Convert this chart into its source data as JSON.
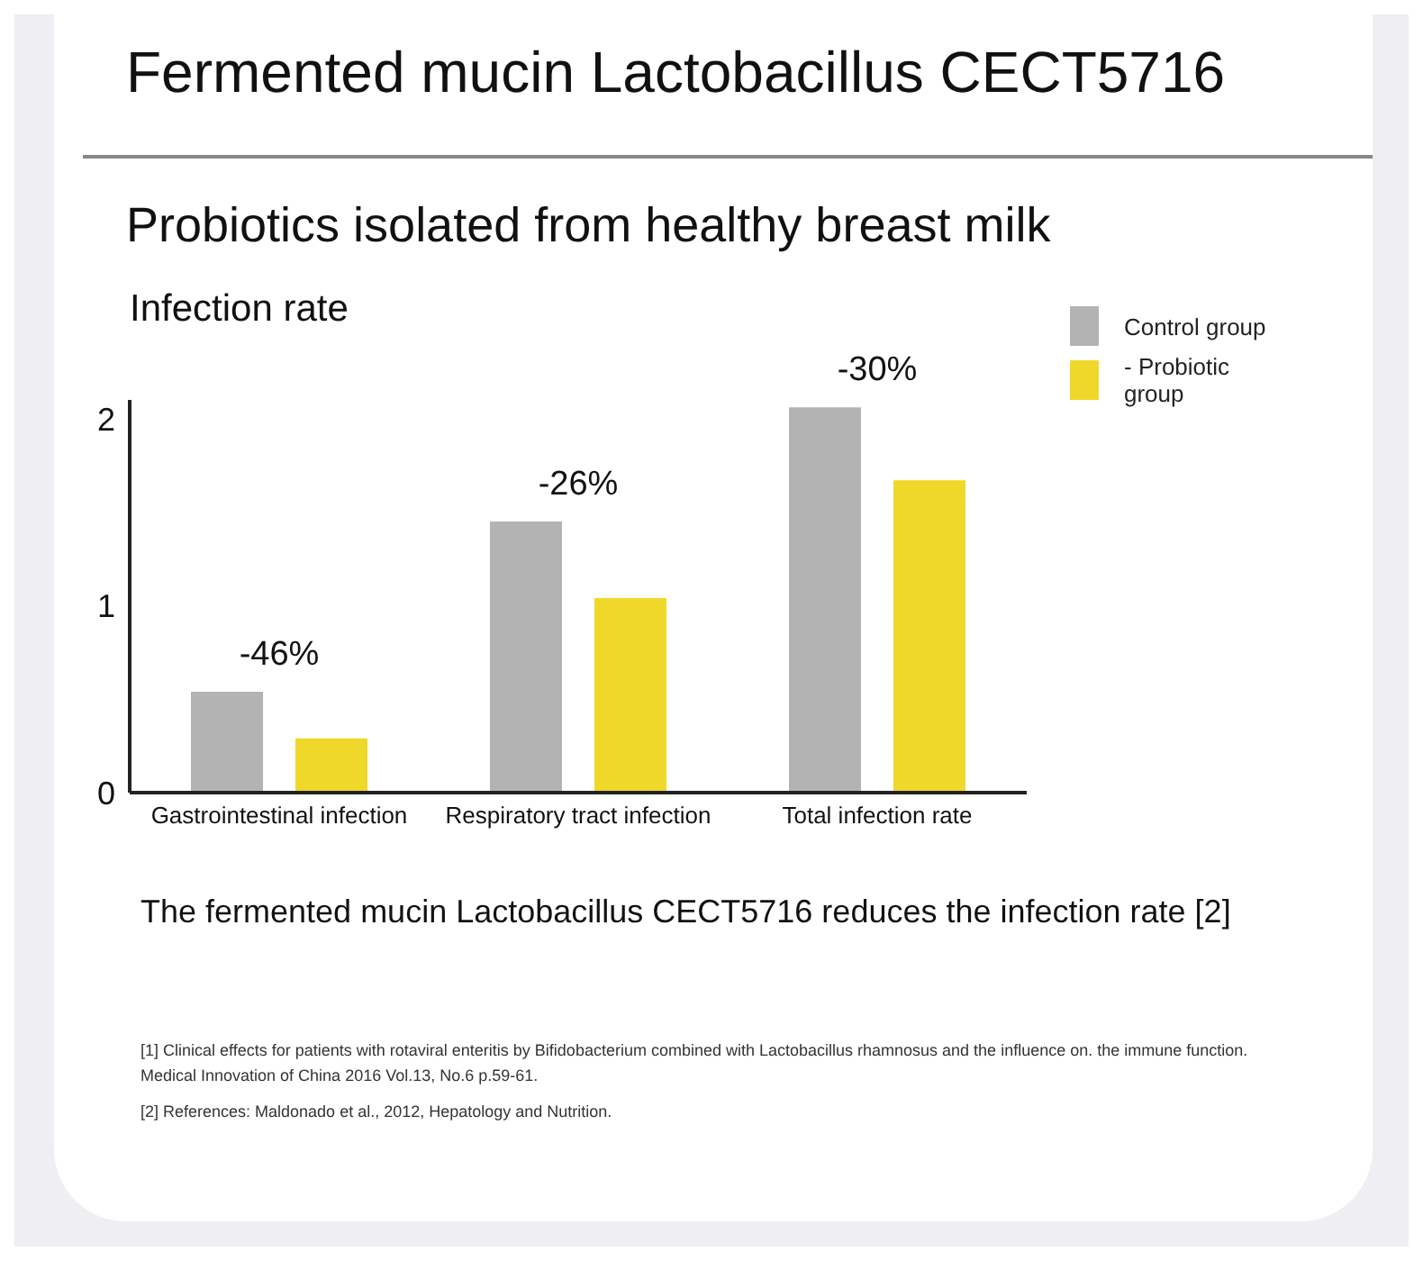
{
  "chart_data": {
    "type": "bar",
    "title": "Fermented mucin Lactobacillus CECT5716",
    "subtitle": "Probiotics isolated from healthy breast milk",
    "ylabel": "Infection rate",
    "categories": [
      "Gastrointestinal infection",
      "Respiratory tract infection",
      "Total infection rate"
    ],
    "series": [
      {
        "name": "Control group",
        "color": "#b3b3b3",
        "values": [
          0.54,
          1.45,
          2.06
        ]
      },
      {
        "name": "- Probiotic group",
        "color": "#f0d82a",
        "values": [
          0.29,
          1.04,
          1.67
        ]
      }
    ],
    "ylim": [
      0,
      2.1
    ],
    "yticks": [
      0,
      1,
      2
    ],
    "grid": false,
    "legend": "top right",
    "annotations": [
      "-46%",
      "-26%",
      "-30%",
      "The fermented mucin Lactobacillus CECT5716 reduces the infection rate [2]",
      "[1] Clinical effects for patients with rotaviral enteritis by Bifidobacterium combined with Lactobacillus rhamnosus and the influence on. the immune function. Medical Innovation of China 2016 Vol.13, No.6 p.59-61.",
      "[2] References: Maldonado et al., 2012, Hepatology and Nutrition."
    ]
  }
}
